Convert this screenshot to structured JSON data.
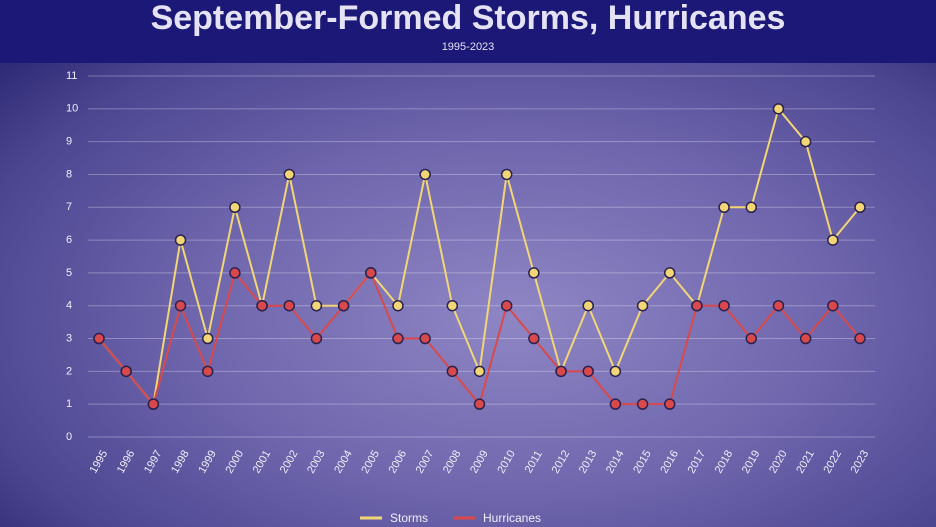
{
  "chart_data": {
    "type": "line",
    "title": "September-Formed Storms, Hurricanes",
    "subtitle": "1995-2023",
    "categories": [
      "1995",
      "1996",
      "1997",
      "1998",
      "1999",
      "2000",
      "2001",
      "2002",
      "2003",
      "2004",
      "2005",
      "2006",
      "2007",
      "2008",
      "2009",
      "2010",
      "2011",
      "2012",
      "2013",
      "2014",
      "2015",
      "2016",
      "2017",
      "2018",
      "2019",
      "2020",
      "2021",
      "2022",
      "2023"
    ],
    "series": [
      {
        "name": "Storms",
        "color": "#f2d675",
        "values": [
          3,
          2,
          1,
          6,
          3,
          7,
          4,
          8,
          4,
          4,
          5,
          4,
          8,
          4,
          2,
          8,
          5,
          2,
          4,
          2,
          4,
          5,
          4,
          7,
          7,
          10,
          9,
          6,
          7
        ]
      },
      {
        "name": "Hurricanes",
        "color": "#d9494b",
        "values": [
          3,
          2,
          1,
          4,
          2,
          5,
          4,
          4,
          3,
          4,
          5,
          3,
          3,
          2,
          1,
          4,
          3,
          2,
          2,
          1,
          1,
          1,
          4,
          4,
          3,
          4,
          3,
          4,
          3
        ]
      }
    ],
    "ylim": [
      0,
      11
    ],
    "yticks": [
      0,
      1,
      2,
      3,
      4,
      5,
      6,
      7,
      8,
      9,
      10,
      11
    ],
    "grid": true,
    "legend": "bottom"
  }
}
